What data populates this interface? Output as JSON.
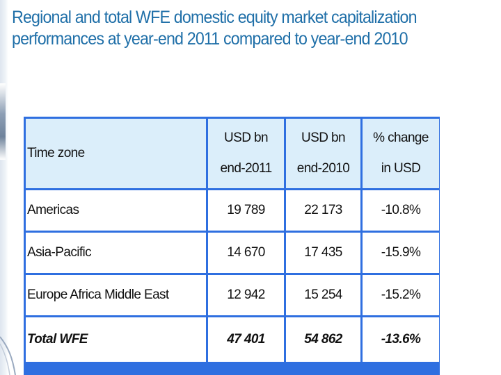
{
  "title": "Regional and total WFE domestic equity market capitalization performances at year-end 2011 compared to year-end 2010",
  "table": {
    "header": {
      "col1": "Time zone",
      "col2_line1": "USD bn",
      "col2_line2": "end-2011",
      "col3_line1": "USD bn",
      "col3_line2": "end-2010",
      "col4_line1": "% change",
      "col4_line2": "in USD"
    },
    "rows": [
      {
        "zone": "Americas",
        "end2011": "19 789",
        "end2010": "22 173",
        "change": "-10.8%"
      },
      {
        "zone": "Asia-Pacific",
        "end2011": "14 670",
        "end2010": "17 435",
        "change": "-15.9%"
      },
      {
        "zone": "Europe Africa Middle East",
        "end2011": "12 942",
        "end2010": "15 254",
        "change": "-15.2%"
      },
      {
        "zone": "Total WFE",
        "end2011": "47 401",
        "end2010": "54 862",
        "change": "-13.6%"
      }
    ]
  },
  "colors": {
    "title": "#1f6fa8",
    "table_border": "#2f6fe0",
    "header_bg": "#dbeefa",
    "header_text": "#2456c9"
  }
}
